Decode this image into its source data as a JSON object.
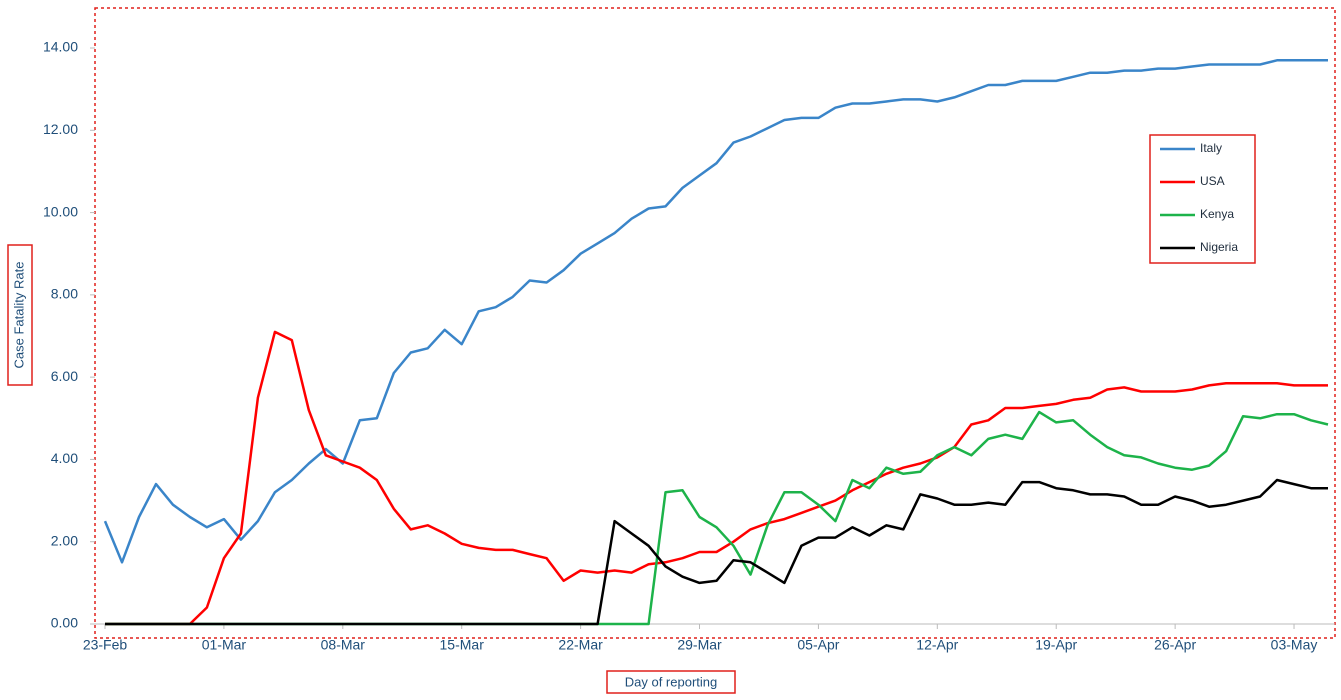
{
  "chart_data": {
    "type": "line",
    "categories": [
      "23-Feb",
      null,
      null,
      null,
      null,
      null,
      null,
      "01-Mar",
      null,
      null,
      null,
      null,
      null,
      null,
      "08-Mar",
      null,
      null,
      null,
      null,
      null,
      null,
      "15-Mar",
      null,
      null,
      null,
      null,
      null,
      null,
      "22-Mar",
      null,
      null,
      null,
      null,
      null,
      null,
      "29-Mar",
      null,
      null,
      null,
      null,
      null,
      null,
      "05-Apr",
      null,
      null,
      null,
      null,
      null,
      null,
      "12-Apr",
      null,
      null,
      null,
      null,
      null,
      null,
      "19-Apr",
      null,
      null,
      null,
      null,
      null,
      null,
      "26-Apr",
      null,
      null,
      null,
      null,
      null,
      null,
      "03-May",
      null,
      null
    ],
    "series": [
      {
        "name": "Italy",
        "color": "#3a85c9",
        "values": [
          2.5,
          1.5,
          2.6,
          3.4,
          2.9,
          2.6,
          2.35,
          2.55,
          2.05,
          2.5,
          3.2,
          3.5,
          3.9,
          4.25,
          3.9,
          4.95,
          5.0,
          6.1,
          6.6,
          6.7,
          7.15,
          6.8,
          7.6,
          7.7,
          7.95,
          8.35,
          8.3,
          8.6,
          9.0,
          9.25,
          9.5,
          9.85,
          10.1,
          10.15,
          10.6,
          10.9,
          11.2,
          11.7,
          11.85,
          12.05,
          12.25,
          12.3,
          12.3,
          12.55,
          12.65,
          12.65,
          12.7,
          12.75,
          12.75,
          12.7,
          12.8,
          12.95,
          13.1,
          13.1,
          13.2,
          13.2,
          13.2,
          13.3,
          13.4,
          13.4,
          13.45,
          13.45,
          13.5,
          13.5,
          13.55,
          13.6,
          13.6,
          13.6,
          13.6,
          13.7,
          13.7,
          13.7,
          13.7
        ]
      },
      {
        "name": "USA",
        "color": "#ff0000",
        "values": [
          0,
          0,
          0,
          0,
          0,
          0,
          0.4,
          1.6,
          2.2,
          5.5,
          7.1,
          6.9,
          5.2,
          4.1,
          3.95,
          3.8,
          3.5,
          2.8,
          2.3,
          2.4,
          2.2,
          1.95,
          1.85,
          1.8,
          1.8,
          1.7,
          1.6,
          1.05,
          1.3,
          1.25,
          1.3,
          1.25,
          1.45,
          1.5,
          1.6,
          1.75,
          1.75,
          2.0,
          2.3,
          2.45,
          2.55,
          2.7,
          2.85,
          3.0,
          3.25,
          3.45,
          3.65,
          3.8,
          3.9,
          4.05,
          4.3,
          4.85,
          4.95,
          5.25,
          5.25,
          5.3,
          5.35,
          5.45,
          5.5,
          5.7,
          5.75,
          5.65,
          5.65,
          5.65,
          5.7,
          5.8,
          5.85,
          5.85,
          5.85,
          5.85,
          5.8,
          5.8,
          5.8
        ]
      },
      {
        "name": "Kenya",
        "color": "#1db34a",
        "values": [
          0,
          0,
          0,
          0,
          0,
          0,
          0,
          0,
          0,
          0,
          0,
          0,
          0,
          0,
          0,
          0,
          0,
          0,
          0,
          0,
          0,
          0,
          0,
          0,
          0,
          0,
          0,
          0,
          0,
          0,
          0,
          0,
          0,
          3.2,
          3.25,
          2.6,
          2.35,
          1.9,
          1.2,
          2.4,
          3.2,
          3.2,
          2.9,
          2.5,
          3.5,
          3.3,
          3.8,
          3.65,
          3.7,
          4.1,
          4.3,
          4.1,
          4.5,
          4.6,
          4.5,
          5.15,
          4.9,
          4.95,
          4.6,
          4.3,
          4.1,
          4.05,
          3.9,
          3.8,
          3.75,
          3.85,
          4.2,
          5.05,
          5.0,
          5.1,
          5.1,
          4.95,
          4.85
        ]
      },
      {
        "name": "Nigeria",
        "color": "#000000",
        "values": [
          0,
          0,
          0,
          0,
          0,
          0,
          0,
          0,
          0,
          0,
          0,
          0,
          0,
          0,
          0,
          0,
          0,
          0,
          0,
          0,
          0,
          0,
          0,
          0,
          0,
          0,
          0,
          0,
          0,
          0,
          2.5,
          2.2,
          1.9,
          1.4,
          1.15,
          1.0,
          1.05,
          1.55,
          1.5,
          1.25,
          1.0,
          1.9,
          2.1,
          2.1,
          2.35,
          2.15,
          2.4,
          2.3,
          3.15,
          3.05,
          2.9,
          2.9,
          2.95,
          2.9,
          3.45,
          3.45,
          3.3,
          3.25,
          3.15,
          3.15,
          3.1,
          2.9,
          2.9,
          3.1,
          3.0,
          2.85,
          2.9,
          3.0,
          3.1,
          3.5,
          3.4,
          3.3,
          3.3
        ]
      }
    ],
    "ylim": [
      0,
      14
    ],
    "yticks": [
      {
        "value": 0,
        "label": "0.00"
      },
      {
        "value": 2,
        "label": "2.00"
      },
      {
        "value": 4,
        "label": "4.00"
      },
      {
        "value": 6,
        "label": "6.00"
      },
      {
        "value": 8,
        "label": "8.00"
      },
      {
        "value": 10,
        "label": "10.00"
      },
      {
        "value": 12,
        "label": "12.00"
      },
      {
        "value": 14,
        "label": "14.00"
      }
    ],
    "xlabel": "Day of reporting",
    "ylabel": "Case Fatality Rate",
    "legend": "right"
  }
}
